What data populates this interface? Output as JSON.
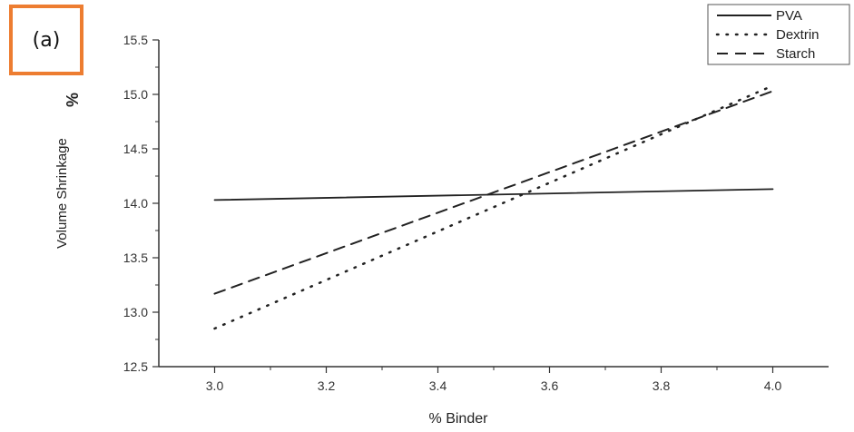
{
  "panel_label": "(a)",
  "chart_data": {
    "type": "line",
    "xlabel": "% Binder",
    "ylabel": "Volume Shrinkage",
    "ylabel_unit": "%",
    "xlim": [
      2.9,
      4.1
    ],
    "ylim": [
      12.5,
      15.5
    ],
    "xticks": [
      "3.0",
      "3.2",
      "3.4",
      "3.6",
      "3.8",
      "4.0"
    ],
    "xtick_values": [
      3.0,
      3.2,
      3.4,
      3.6,
      3.8,
      4.0
    ],
    "yticks": [
      "12.5",
      "13.0",
      "13.5",
      "14.0",
      "14.5",
      "15.0",
      "15.5"
    ],
    "ytick_values": [
      12.5,
      13.0,
      13.5,
      14.0,
      14.5,
      15.0,
      15.5
    ],
    "x": [
      3.0,
      4.0
    ],
    "series": [
      {
        "name": "PVA",
        "style": "solid",
        "values": [
          14.03,
          14.13
        ]
      },
      {
        "name": "Dextrin",
        "style": "dotted",
        "values": [
          12.85,
          15.08
        ]
      },
      {
        "name": "Starch",
        "style": "dashed",
        "values": [
          13.17,
          15.03
        ]
      }
    ],
    "legend_position": "top-right",
    "grid": false,
    "line_color": "#222222"
  }
}
